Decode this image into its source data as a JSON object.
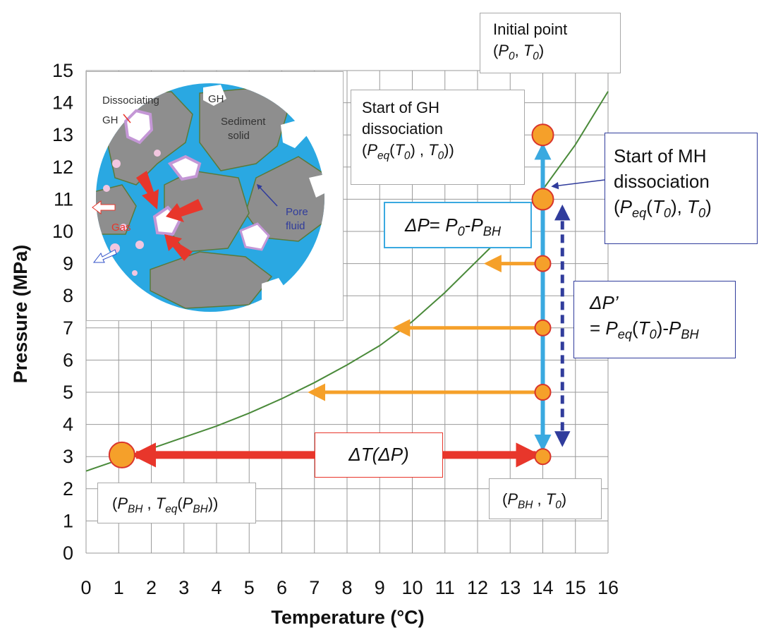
{
  "chart_data": {
    "type": "line",
    "xlabel": "Temperature (°C)",
    "ylabel": "Pressure (MPa)",
    "xlim": [
      0,
      16
    ],
    "ylim": [
      0,
      15
    ],
    "xticks": [
      "0",
      "1",
      "2",
      "3",
      "4",
      "5",
      "6",
      "7",
      "8",
      "9",
      "10",
      "11",
      "12",
      "13",
      "14",
      "15",
      "16"
    ],
    "yticks": [
      "0",
      "1",
      "2",
      "3",
      "4",
      "5",
      "6",
      "7",
      "8",
      "9",
      "10",
      "11",
      "12",
      "13",
      "14",
      "15"
    ],
    "grid": true,
    "series": [
      {
        "color": "#4a8a3a",
        "x": [
          0,
          1,
          2,
          3,
          4,
          5,
          6,
          7,
          8,
          9,
          10,
          11,
          12,
          13,
          14,
          15,
          16
        ],
        "y": [
          2.55,
          2.9,
          3.25,
          3.6,
          3.95,
          4.35,
          4.8,
          5.3,
          5.85,
          6.45,
          7.2,
          8.1,
          9.1,
          10.1,
          11.3,
          12.7,
          14.35
        ]
      }
    ],
    "points": [
      {
        "x": 14,
        "y": 13
      },
      {
        "x": 14,
        "y": 11
      },
      {
        "x": 14,
        "y": 9
      },
      {
        "x": 14,
        "y": 7
      },
      {
        "x": 14,
        "y": 5
      },
      {
        "x": 14,
        "y": 3
      },
      {
        "x": 1.1,
        "y": 3.05
      }
    ],
    "horizontal_arrows": [
      {
        "from_x": 14,
        "to_x": 12.3,
        "y": 9
      },
      {
        "from_x": 14,
        "to_x": 9.5,
        "y": 7
      },
      {
        "from_x": 14,
        "to_x": 6.9,
        "y": 5
      }
    ],
    "colors": {
      "orange": "#f5a02a",
      "point_outline": "#d9352c",
      "red": "#e8362b",
      "cyan": "#3aa9e0",
      "navy": "#303c9c"
    }
  },
  "annotations": {
    "initial_point": {
      "line1": "Initial point",
      "p": "P",
      "p_sub": "0",
      "t": "T",
      "t_sub": "0"
    },
    "start_gh": {
      "line1": "Start of GH",
      "line2": "dissociation",
      "p": "P",
      "p_sub": "eq",
      "t": "T",
      "t_sub": "0"
    },
    "start_mh": {
      "line1": "Start of MH",
      "line2": "dissociation",
      "p": "P",
      "p_sub": "eq",
      "t": "T",
      "t_sub": "0"
    },
    "delta_p": {
      "lhs": "ΔP",
      "eq": "=",
      "p0": "P",
      "p0_sub": "0",
      "minus": "-",
      "pbh": "P",
      "pbh_sub": "BH"
    },
    "delta_p_prime": {
      "lhs": "ΔP’",
      "eq": "=",
      "peq": "P",
      "peq_sub": "eq",
      "t": "T",
      "t_sub": "0",
      "minus": "-",
      "pbh": "P",
      "pbh_sub": "BH"
    },
    "delta_t": {
      "text": "ΔT(ΔP)"
    },
    "pbh_teq": {
      "p": "P",
      "p_sub": "BH",
      "t": "T",
      "t_sub": "eq",
      "inner_p": "P",
      "inner_sub": "BH"
    },
    "pbh_t0": {
      "p": "P",
      "p_sub": "BH",
      "t": "T",
      "t_sub": "0"
    }
  },
  "inset": {
    "dissociating": "Dissociating",
    "gh_small": "GH",
    "gh": "GH",
    "sediment": "Sediment",
    "solid": "solid",
    "gas": "Gas",
    "pore": "Pore",
    "fluid": "fluid"
  }
}
